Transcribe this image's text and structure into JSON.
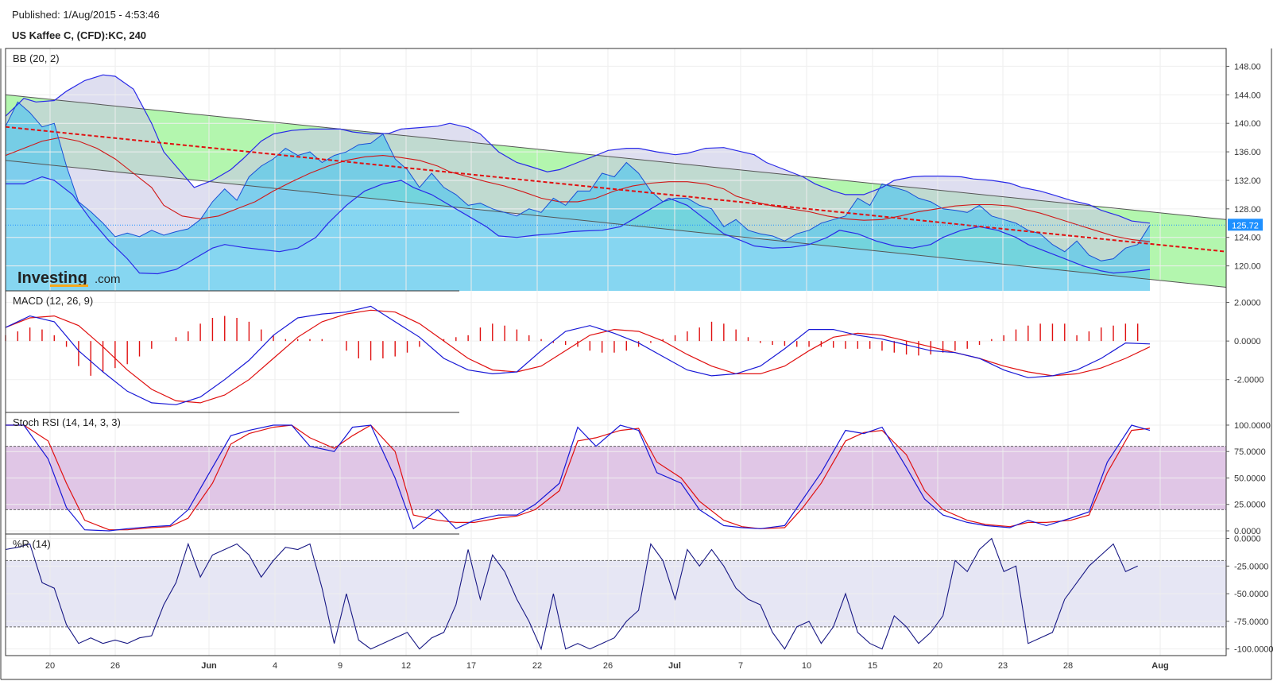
{
  "header": {
    "published": "Published: 1/Aug/2015 - 4:53:46",
    "symbol": "US Kaffee C, (CFD):KC, 240"
  },
  "logo": {
    "main": "Investing",
    "suffix": ".com"
  },
  "colors": {
    "price_line": "#1a4fd6",
    "price_fill": "#5ec8ec",
    "bb_fill": "#c8c8e6",
    "bb_line": "#2a2ae8",
    "bb_mid": "#d01818",
    "channel_fill": "#a6f5a0",
    "trend": "#e01010",
    "macd_line": "#1818d6",
    "signal_line": "#e01010",
    "hist": "#e01010",
    "stoch_band": "#e0c6e6",
    "wr_band": "#e6e6f4",
    "wr_line": "#181884",
    "last_price_bg": "#1e90ff"
  },
  "x_axis": {
    "labels": [
      "20",
      "26",
      "Jun",
      "4",
      "9",
      "12",
      "17",
      "22",
      "26",
      "Jul",
      "7",
      "10",
      "15",
      "20",
      "23",
      "28",
      "Aug"
    ],
    "bold": [
      "Jun",
      "Jul",
      "Aug"
    ]
  },
  "chart_data": [
    {
      "type": "line",
      "title": "BB (20, 2)",
      "ylim": [
        116.5,
        150.5
      ],
      "yticks": [
        "148.00",
        "144.00",
        "140.00",
        "136.00",
        "132.00",
        "128.00",
        "124.00",
        "120.00"
      ],
      "last_price": "125.72",
      "price_x": [
        0,
        2,
        4,
        6,
        8,
        10,
        12,
        14,
        16,
        18,
        20,
        22,
        24,
        26,
        28,
        30,
        32,
        34,
        36,
        38,
        40,
        42,
        44,
        46,
        48,
        50,
        52,
        54,
        56,
        58,
        60,
        62,
        64,
        66,
        68,
        70,
        72,
        74,
        76,
        78,
        80,
        82,
        84,
        86,
        88,
        90,
        92,
        94,
        96,
        98,
        100,
        102,
        104,
        106,
        108,
        110,
        112,
        114,
        116,
        118,
        120,
        122,
        124,
        126,
        128,
        130,
        132,
        134,
        136,
        138,
        140,
        142,
        144,
        146,
        148,
        150,
        152,
        154,
        156,
        158,
        160,
        162,
        164,
        166,
        168,
        170,
        172,
        174,
        176,
        178,
        180,
        182,
        184,
        186,
        188
      ],
      "price": [
        139.6,
        143.0,
        141.5,
        139.5,
        140.0,
        134.0,
        129.0,
        127.6,
        126.0,
        124.1,
        124.6,
        124.1,
        125.0,
        124.3,
        124.8,
        125.2,
        126.5,
        129.0,
        130.8,
        129.2,
        132.5,
        134.0,
        135.0,
        136.5,
        135.5,
        136.0,
        134.5,
        135.5,
        136.0,
        137.0,
        137.2,
        138.5,
        135.0,
        133.5,
        131.0,
        133.0,
        131.0,
        130.0,
        128.5,
        128.8,
        128.0,
        127.5,
        127.0,
        128.0,
        127.5,
        129.5,
        128.5,
        130.5,
        130.5,
        133.0,
        132.5,
        134.5,
        133.0,
        130.5,
        129.0,
        129.5,
        129.5,
        128.5,
        128.0,
        125.5,
        126.5,
        125.0,
        124.5,
        124.2,
        123.5,
        124.5,
        125.0,
        126.0,
        126.5,
        127.0,
        129.5,
        128.5,
        131.5,
        131.0,
        130.5,
        129.5,
        129.0,
        128.0,
        127.8,
        127.5,
        128.5,
        127.0,
        126.5,
        126.0,
        125.0,
        124.5,
        123.0,
        122.0,
        123.5,
        121.5,
        120.7,
        121.0,
        122.5,
        123.0,
        125.72
      ],
      "bb_upper": [
        141.0,
        143.5,
        143.0,
        143.2,
        144.5,
        146.0,
        146.8,
        146.6,
        144.8,
        140.0,
        136.0,
        133.0,
        131.0,
        132.0,
        133.5,
        135.0,
        137.5,
        138.5,
        139.0,
        139.2,
        139.2,
        139.2,
        138.8,
        138.5,
        138.6,
        139.2,
        139.4,
        139.6,
        140.0,
        139.4,
        138.5,
        136.0,
        134.5,
        134.0,
        133.2,
        133.5,
        134.5,
        135.5,
        136.2,
        136.5,
        136.5,
        136.0,
        135.6,
        135.8,
        136.5,
        136.6,
        136.2,
        135.6,
        134.5,
        133.5,
        132.5,
        131.5,
        130.5,
        130.0,
        130.0,
        131.0,
        132.0,
        132.5,
        132.6,
        132.6,
        132.5,
        132.2,
        132.0,
        131.6,
        131.0,
        130.5,
        130.0,
        129.2,
        128.6,
        127.8,
        127.0,
        126.3,
        126.0
      ],
      "bb_mid": [
        135.5,
        136.5,
        137.5,
        138.0,
        137.5,
        136.5,
        135.0,
        133.0,
        131.0,
        128.5,
        127.0,
        126.6,
        127.0,
        128.0,
        129.0,
        130.5,
        131.8,
        133.0,
        134.0,
        134.8,
        135.3,
        135.5,
        135.2,
        134.8,
        134.0,
        133.2,
        132.5,
        131.8,
        131.2,
        130.4,
        129.5,
        129.0,
        129.0,
        129.5,
        130.5,
        131.2,
        131.6,
        131.8,
        131.8,
        131.5,
        130.8,
        129.8,
        129.0,
        128.4,
        128.0,
        127.6,
        127.0,
        126.6,
        126.4,
        126.5,
        127.0,
        127.6,
        128.0,
        128.4,
        128.6,
        128.6,
        128.4,
        128.0,
        127.4,
        126.6,
        125.8,
        125.0,
        124.2,
        123.7,
        123.4
      ],
      "bb_lower": [
        131.5,
        131.5,
        132.5,
        132.0,
        130.0,
        126.5,
        123.5,
        121.0,
        119.0,
        118.9,
        119.5,
        121.0,
        122.5,
        123.0,
        122.6,
        122.3,
        122.0,
        122.5,
        124.0,
        126.0,
        128.5,
        130.5,
        131.5,
        132.0,
        131.0,
        130.0,
        128.5,
        127.0,
        125.5,
        124.2,
        124.0,
        124.3,
        124.5,
        124.8,
        124.9,
        125.0,
        125.5,
        127.0,
        128.5,
        129.5,
        128.5,
        126.5,
        124.5,
        123.5,
        122.8,
        122.5,
        122.6,
        123.0,
        124.0,
        125.0,
        124.5,
        123.5,
        122.8,
        122.5,
        123.0,
        124.0,
        125.0,
        125.5,
        125.0,
        124.0,
        123.0,
        122.0,
        121.0,
        120.0,
        119.3,
        119.0,
        119.2,
        119.5
      ]
    },
    {
      "type": "bar",
      "title": "MACD (12, 26, 9)",
      "ylim": [
        -3.7,
        2.6
      ],
      "yticks": [
        "2.0000",
        "0.0000",
        "-2.0000"
      ],
      "macd_x": [
        0,
        4,
        8,
        12,
        16,
        20,
        24,
        28,
        32,
        36,
        40,
        44,
        48,
        52,
        56,
        60,
        64,
        68,
        72,
        76,
        80,
        84,
        88,
        92,
        96,
        100,
        104,
        108,
        112,
        116,
        120,
        124,
        128,
        132,
        136,
        140,
        144,
        148,
        152,
        156,
        160,
        164,
        168,
        172,
        176,
        180,
        184,
        188
      ],
      "macd": [
        0.7,
        1.3,
        1.0,
        -0.5,
        -1.6,
        -2.6,
        -3.2,
        -3.3,
        -2.9,
        -2.0,
        -1.0,
        0.3,
        1.2,
        1.4,
        1.5,
        1.8,
        1.0,
        0.2,
        -0.9,
        -1.5,
        -1.7,
        -1.6,
        -0.5,
        0.5,
        0.8,
        0.4,
        -0.1,
        -0.8,
        -1.5,
        -1.8,
        -1.7,
        -1.3,
        -0.4,
        0.6,
        0.6,
        0.3,
        0.1,
        -0.2,
        -0.5,
        -0.6,
        -0.9,
        -1.5,
        -1.9,
        -1.8,
        -1.5,
        -0.9,
        -0.1,
        -0.15
      ],
      "signal": [
        0.7,
        1.2,
        1.3,
        0.8,
        -0.3,
        -1.5,
        -2.5,
        -3.1,
        -3.2,
        -2.8,
        -2.0,
        -0.9,
        0.2,
        1.0,
        1.4,
        1.6,
        1.5,
        0.9,
        0.0,
        -0.9,
        -1.5,
        -1.6,
        -1.3,
        -0.5,
        0.3,
        0.6,
        0.5,
        0.0,
        -0.7,
        -1.3,
        -1.7,
        -1.7,
        -1.3,
        -0.5,
        0.2,
        0.4,
        0.3,
        0.0,
        -0.3,
        -0.6,
        -0.9,
        -1.3,
        -1.6,
        -1.8,
        -1.7,
        -1.4,
        -0.9,
        -0.3
      ],
      "hist_x": [
        0,
        2,
        4,
        6,
        8,
        10,
        12,
        14,
        16,
        18,
        20,
        22,
        24,
        26,
        28,
        30,
        32,
        34,
        36,
        38,
        40,
        42,
        44,
        46,
        48,
        50,
        52,
        54,
        56,
        58,
        60,
        62,
        64,
        66,
        68,
        70,
        72,
        74,
        76,
        78,
        80,
        82,
        84,
        86,
        88,
        90,
        92,
        94,
        96,
        98,
        100,
        102,
        104,
        106,
        108,
        110,
        112,
        114,
        116,
        118,
        120,
        122,
        124,
        126,
        128,
        130,
        132,
        134,
        136,
        138,
        140,
        142,
        144,
        146,
        148,
        150,
        152,
        154,
        156,
        158,
        160,
        162,
        164,
        166,
        168,
        170,
        172,
        174,
        176,
        178,
        180,
        182,
        184,
        186
      ],
      "hist": [
        0.3,
        0.5,
        0.7,
        0.6,
        0.3,
        -0.3,
        -1.3,
        -1.8,
        -1.6,
        -1.4,
        -1.2,
        -0.8,
        -0.4,
        0.0,
        0.2,
        0.5,
        0.9,
        1.2,
        1.3,
        1.2,
        1.0,
        0.6,
        0.3,
        0.1,
        0.1,
        0.1,
        0.1,
        0.0,
        -0.5,
        -0.9,
        -1.0,
        -0.9,
        -0.8,
        -0.6,
        -0.3,
        0.0,
        0.1,
        0.2,
        0.3,
        0.7,
        0.9,
        0.8,
        0.6,
        0.3,
        0.1,
        -0.1,
        -0.2,
        -0.3,
        -0.5,
        -0.6,
        -0.6,
        -0.5,
        -0.3,
        -0.1,
        0.1,
        0.3,
        0.5,
        0.7,
        1.0,
        0.9,
        0.6,
        0.2,
        -0.1,
        -0.2,
        -0.25,
        -0.3,
        -0.3,
        -0.3,
        -0.35,
        -0.4,
        -0.4,
        -0.4,
        -0.5,
        -0.6,
        -0.7,
        -0.75,
        -0.7,
        -0.6,
        -0.5,
        -0.4,
        -0.2,
        0.1,
        0.3,
        0.6,
        0.8,
        0.9,
        0.9,
        0.9,
        0.3,
        0.5,
        0.7,
        0.8,
        0.9,
        0.9
      ]
    },
    {
      "type": "line",
      "title": "Stoch RSI (14, 14, 3, 3)",
      "ylim": [
        -3,
        112
      ],
      "yticks": [
        "100.0000",
        "75.0000",
        "50.0000",
        "25.0000",
        "0.0000"
      ],
      "band": [
        20,
        80
      ],
      "x": [
        0,
        4,
        8,
        12,
        16,
        20,
        24,
        28,
        32,
        36,
        40,
        44,
        48,
        52,
        56,
        60,
        64,
        68,
        72,
        76,
        80,
        84,
        88,
        92,
        96,
        100,
        104,
        108,
        112,
        116,
        120,
        124,
        128,
        132,
        136,
        140,
        144,
        148,
        152,
        156,
        160,
        164,
        168,
        172,
        176,
        180,
        184,
        188
      ],
      "k": [
        100,
        100,
        68,
        22,
        1,
        0,
        2,
        4,
        5,
        20,
        60,
        90,
        95,
        100,
        100,
        80,
        75,
        98,
        100,
        50,
        2,
        20,
        2,
        10,
        15,
        15,
        25,
        45,
        98,
        80,
        100,
        95,
        55,
        45,
        20,
        5,
        3,
        2,
        5,
        30,
        55,
        95,
        92,
        98,
        60,
        30,
        15,
        8,
        5,
        3,
        10,
        5,
        12,
        18,
        65,
        100,
        95
      ],
      "d": [
        100,
        100,
        85,
        45,
        10,
        1,
        1,
        3,
        4,
        12,
        45,
        82,
        92,
        98,
        100,
        88,
        78,
        90,
        100,
        75,
        15,
        10,
        8,
        8,
        12,
        14,
        20,
        38,
        85,
        88,
        95,
        97,
        65,
        50,
        28,
        10,
        4,
        2,
        3,
        22,
        45,
        85,
        93,
        95,
        72,
        38,
        20,
        10,
        6,
        4,
        8,
        8,
        10,
        15,
        55,
        95,
        97
      ]
    },
    {
      "type": "line",
      "title": "%R (14)",
      "ylim": [
        -106,
        4
      ],
      "yticks": [
        "0.0000",
        "-25.0000",
        "-50.0000",
        "-75.0000",
        "-100.0000"
      ],
      "band": [
        -80,
        -20
      ],
      "x": [
        0,
        2,
        4,
        6,
        8,
        10,
        12,
        14,
        16,
        18,
        20,
        22,
        24,
        26,
        28,
        30,
        32,
        34,
        36,
        38,
        40,
        42,
        44,
        46,
        48,
        50,
        52,
        54,
        56,
        58,
        60,
        62,
        64,
        66,
        68,
        70,
        72,
        74,
        76,
        78,
        80,
        82,
        84,
        86,
        88,
        90,
        92,
        94,
        96,
        98,
        100,
        102,
        104,
        106,
        108,
        110,
        112,
        114,
        116,
        118,
        120,
        122,
        124,
        126,
        128,
        130,
        132,
        134,
        136,
        138,
        140,
        142,
        144,
        146,
        148,
        150,
        152,
        154,
        156,
        158,
        160,
        162,
        164,
        166,
        168,
        170,
        172,
        174,
        176,
        178,
        180,
        182,
        184,
        186
      ],
      "values": [
        -10,
        -8,
        -5,
        -40,
        -45,
        -78,
        -95,
        -90,
        -95,
        -92,
        -95,
        -90,
        -88,
        -60,
        -40,
        -5,
        -35,
        -15,
        -10,
        -5,
        -15,
        -35,
        -20,
        -8,
        -10,
        -5,
        -45,
        -95,
        -50,
        -92,
        -100,
        -95,
        -90,
        -85,
        -100,
        -90,
        -85,
        -60,
        -10,
        -55,
        -15,
        -30,
        -55,
        -75,
        -100,
        -50,
        -100,
        -95,
        -100,
        -95,
        -90,
        -75,
        -65,
        -5,
        -20,
        -55,
        -10,
        -25,
        -10,
        -25,
        -45,
        -55,
        -60,
        -85,
        -100,
        -80,
        -75,
        -95,
        -80,
        -50,
        -85,
        -95,
        -100,
        -70,
        -80,
        -95,
        -85,
        -70,
        -20,
        -30,
        -10,
        0,
        -30,
        -25,
        -95,
        -90,
        -85,
        -55,
        -40,
        -25,
        -15,
        -5,
        -30,
        -25
      ]
    }
  ]
}
